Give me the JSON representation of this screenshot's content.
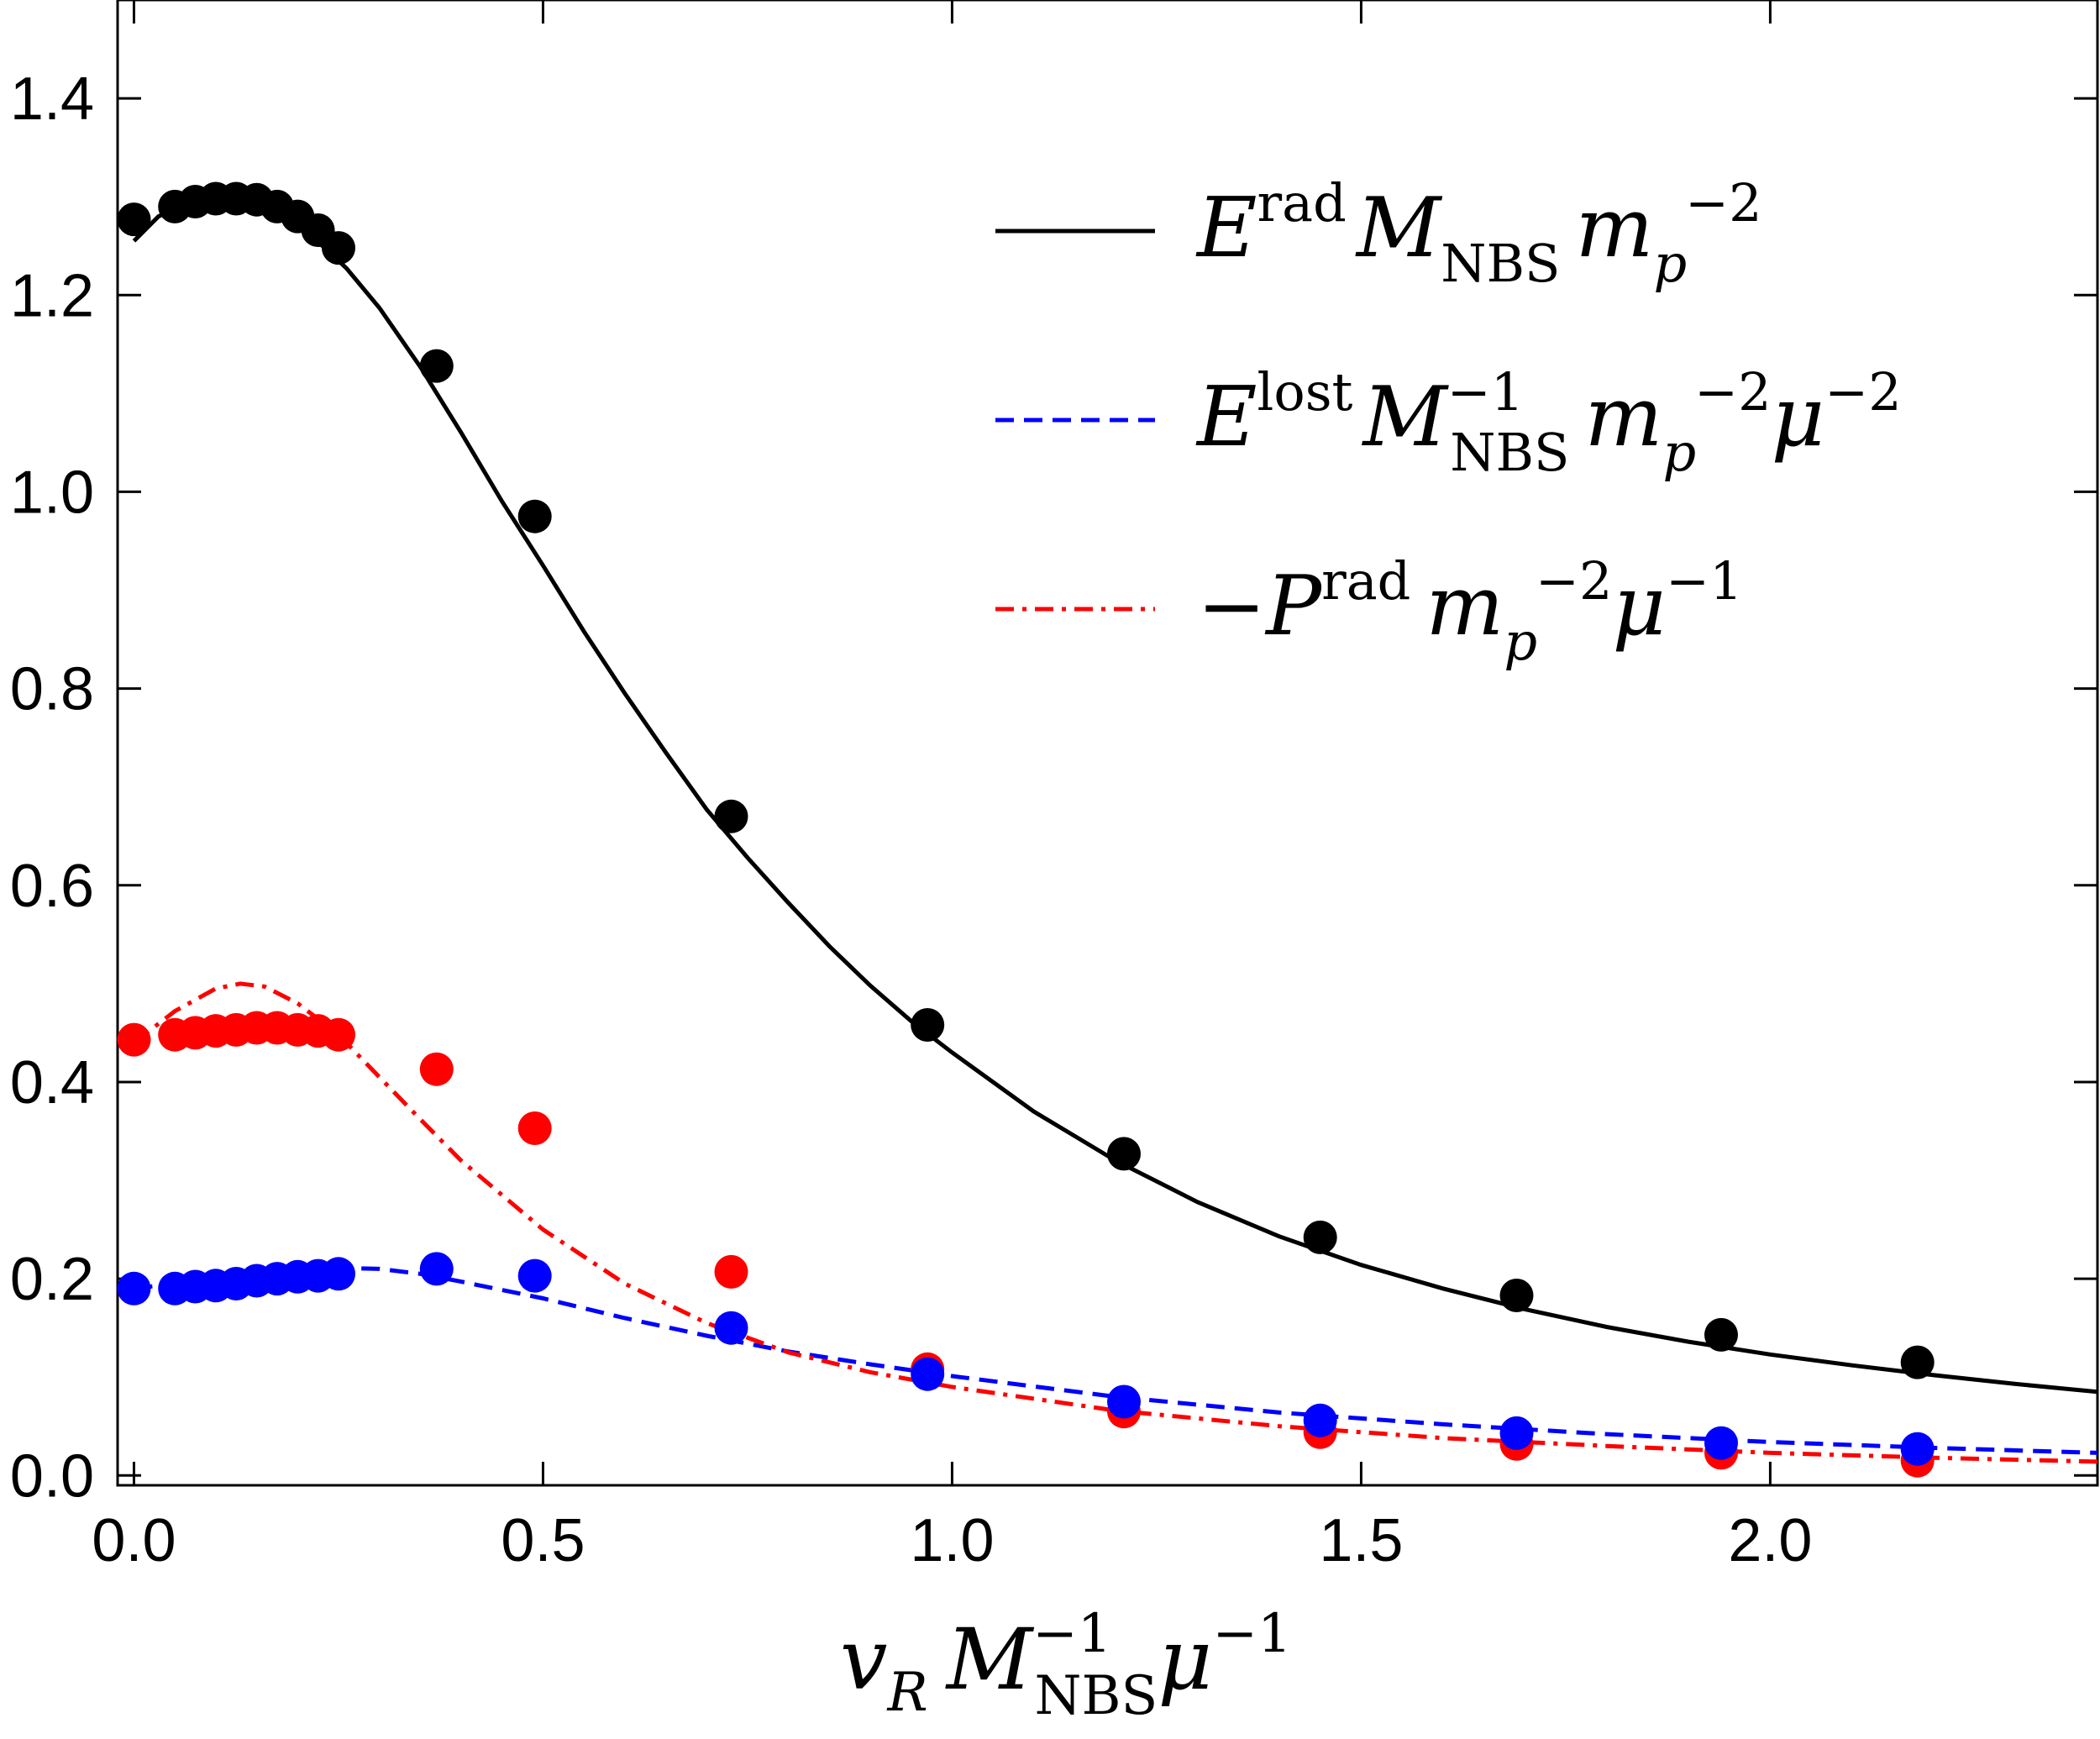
{
  "chart_data": {
    "type": "line",
    "title": "",
    "xlabel": "v_R M_NBS^-1 μ^-1",
    "ylabel": "",
    "xlim": [
      -0.02,
      2.4
    ],
    "ylim": [
      -0.01,
      1.5
    ],
    "grid": false,
    "legend_position": "top-right",
    "x_ticks": [
      "0.0",
      "0.5",
      "1.0",
      "1.5",
      "2.0"
    ],
    "y_ticks": [
      "0.0",
      "0.2",
      "0.4",
      "0.6",
      "0.8",
      "1.0",
      "1.2",
      "1.4"
    ],
    "x_tick_values": [
      0.0,
      0.5,
      1.0,
      1.5,
      2.0
    ],
    "y_tick_values": [
      0.0,
      0.2,
      0.4,
      0.6,
      0.8,
      1.0,
      1.2,
      1.4
    ],
    "series": [
      {
        "name": "E^rad M_NBS m_p^-2",
        "color": "#000000",
        "dash": "solid",
        "curve_x": [
          0.0,
          0.03,
          0.06,
          0.1,
          0.14,
          0.18,
          0.22,
          0.26,
          0.3,
          0.35,
          0.4,
          0.45,
          0.5,
          0.55,
          0.6,
          0.65,
          0.7,
          0.75,
          0.8,
          0.85,
          0.9,
          0.95,
          1.0,
          1.1,
          1.2,
          1.3,
          1.4,
          1.5,
          1.6,
          1.7,
          1.8,
          1.9,
          2.0,
          2.1,
          2.2,
          2.3,
          2.4
        ],
        "curve_y": [
          1.255,
          1.28,
          1.292,
          1.296,
          1.292,
          1.279,
          1.258,
          1.227,
          1.187,
          1.127,
          1.06,
          0.99,
          0.925,
          0.858,
          0.795,
          0.735,
          0.677,
          0.628,
          0.582,
          0.538,
          0.498,
          0.462,
          0.43,
          0.37,
          0.32,
          0.278,
          0.243,
          0.214,
          0.19,
          0.169,
          0.151,
          0.136,
          0.123,
          0.112,
          0.102,
          0.093,
          0.085
        ],
        "points_x": [
          0.0,
          0.05,
          0.075,
          0.1,
          0.125,
          0.15,
          0.175,
          0.2,
          0.225,
          0.25,
          0.37,
          0.49,
          0.73,
          0.97,
          1.21,
          1.45,
          1.69,
          1.94,
          2.18
        ],
        "points_y": [
          1.277,
          1.29,
          1.295,
          1.298,
          1.298,
          1.297,
          1.29,
          1.28,
          1.266,
          1.248,
          1.128,
          0.975,
          0.67,
          0.458,
          0.327,
          0.242,
          0.183,
          0.143,
          0.115
        ]
      },
      {
        "name": "E^lost M_NBS^-1 m_p^-2 μ^-2",
        "color": "#0000ff",
        "dash": "dashed",
        "curve_x": [
          0.0,
          0.05,
          0.1,
          0.15,
          0.2,
          0.25,
          0.3,
          0.35,
          0.4,
          0.5,
          0.6,
          0.7,
          0.8,
          0.9,
          1.0,
          1.2,
          1.4,
          1.6,
          1.8,
          2.0,
          2.2,
          2.4
        ],
        "curve_y": [
          0.19,
          0.195,
          0.2,
          0.205,
          0.208,
          0.211,
          0.21,
          0.205,
          0.197,
          0.18,
          0.16,
          0.142,
          0.126,
          0.113,
          0.101,
          0.08,
          0.064,
          0.052,
          0.042,
          0.034,
          0.028,
          0.023
        ],
        "points_x": [
          0.0,
          0.05,
          0.075,
          0.1,
          0.125,
          0.15,
          0.175,
          0.2,
          0.225,
          0.25,
          0.37,
          0.49,
          0.73,
          0.97,
          1.21,
          1.45,
          1.69,
          1.94,
          2.18
        ],
        "points_y": [
          0.19,
          0.19,
          0.192,
          0.193,
          0.195,
          0.198,
          0.2,
          0.202,
          0.203,
          0.205,
          0.21,
          0.203,
          0.15,
          0.103,
          0.075,
          0.056,
          0.043,
          0.033,
          0.027
        ]
      },
      {
        "name": "-P^rad m_p^-2 μ^-1",
        "color": "#ff0000",
        "dash": "dashdot",
        "curve_x": [
          0.0,
          0.05,
          0.1,
          0.13,
          0.16,
          0.2,
          0.25,
          0.3,
          0.35,
          0.4,
          0.5,
          0.6,
          0.7,
          0.8,
          0.9,
          1.0,
          1.2,
          1.4,
          1.6,
          1.8,
          2.0,
          2.2,
          2.4
        ],
        "curve_y": [
          0.44,
          0.472,
          0.495,
          0.5,
          0.497,
          0.48,
          0.448,
          0.405,
          0.362,
          0.32,
          0.25,
          0.195,
          0.155,
          0.125,
          0.105,
          0.09,
          0.066,
          0.05,
          0.038,
          0.03,
          0.023,
          0.018,
          0.014
        ],
        "points_x": [
          0.0,
          0.05,
          0.075,
          0.1,
          0.125,
          0.15,
          0.175,
          0.2,
          0.225,
          0.25,
          0.37,
          0.49,
          0.73,
          0.97,
          1.21,
          1.45,
          1.69,
          1.94,
          2.18
        ],
        "points_y": [
          0.443,
          0.448,
          0.45,
          0.452,
          0.453,
          0.455,
          0.455,
          0.453,
          0.452,
          0.448,
          0.413,
          0.353,
          0.207,
          0.108,
          0.065,
          0.044,
          0.032,
          0.023,
          0.015
        ]
      }
    ]
  }
}
